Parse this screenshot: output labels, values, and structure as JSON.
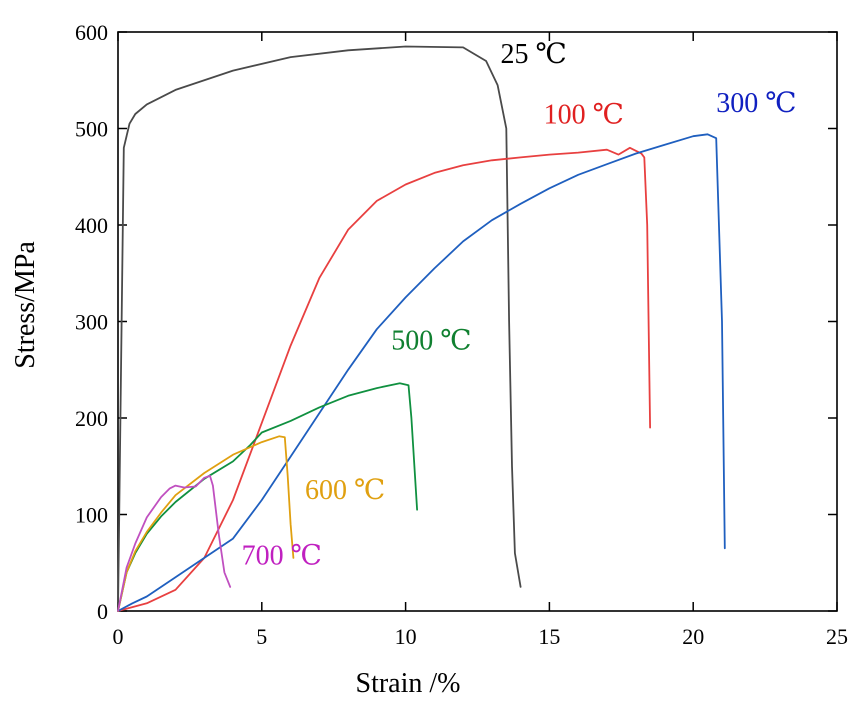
{
  "chart_data": {
    "type": "line",
    "xlabel": "Strain /%",
    "ylabel": "Stress/MPa",
    "xlim": [
      0,
      25
    ],
    "ylim": [
      0,
      600
    ],
    "xticks": [
      0,
      5,
      10,
      15,
      20,
      25
    ],
    "yticks": [
      0,
      100,
      200,
      300,
      400,
      500,
      600
    ],
    "grid": false,
    "legend": "inline labels near curves",
    "series": [
      {
        "name": "25 ℃",
        "color": "#4a4a4a",
        "x": [
          0.0,
          0.2,
          0.4,
          0.6,
          1.0,
          2.0,
          4.0,
          6.0,
          8.0,
          10.0,
          12.0,
          12.8,
          13.2,
          13.5,
          13.6,
          13.7,
          13.8,
          14.0
        ],
        "y": [
          0,
          480,
          505,
          515,
          525,
          540,
          560,
          574,
          581,
          585,
          584,
          570,
          545,
          500,
          300,
          150,
          60,
          25
        ]
      },
      {
        "name": "100 ℃",
        "color": "#e84040",
        "x": [
          0.0,
          0.5,
          1.0,
          2.0,
          3.0,
          4.0,
          5.0,
          6.0,
          7.0,
          8.0,
          9.0,
          10.0,
          11.0,
          12.0,
          13.0,
          14.0,
          15.0,
          16.0,
          17.0,
          17.4,
          17.8,
          18.2,
          18.3,
          18.4,
          18.5
        ],
        "y": [
          0,
          4,
          8,
          22,
          55,
          115,
          195,
          275,
          345,
          395,
          425,
          442,
          454,
          462,
          467,
          470,
          473,
          475,
          478,
          473,
          480,
          474,
          470,
          400,
          190
        ]
      },
      {
        "name": "300 ℃",
        "color": "#1f5fbf",
        "x": [
          0.0,
          0.5,
          1.0,
          2.0,
          3.0,
          4.0,
          5.0,
          6.0,
          7.0,
          8.0,
          9.0,
          10.0,
          11.0,
          12.0,
          13.0,
          14.0,
          15.0,
          16.0,
          17.0,
          18.0,
          19.0,
          20.0,
          20.5,
          20.8,
          21.0,
          21.1
        ],
        "y": [
          0,
          8,
          15,
          35,
          55,
          75,
          115,
          160,
          205,
          250,
          292,
          325,
          355,
          383,
          405,
          422,
          438,
          452,
          463,
          474,
          483,
          492,
          494,
          490,
          300,
          65
        ]
      },
      {
        "name": "500 ℃",
        "color": "#109040",
        "x": [
          0.0,
          0.3,
          0.6,
          1.0,
          1.5,
          2.0,
          3.0,
          4.0,
          4.6,
          5.0,
          6.0,
          7.0,
          8.0,
          9.0,
          9.8,
          10.1,
          10.2,
          10.4
        ],
        "y": [
          0,
          40,
          60,
          80,
          98,
          113,
          137,
          155,
          172,
          185,
          197,
          211,
          223,
          231,
          236,
          234,
          200,
          105
        ]
      },
      {
        "name": "600 ℃",
        "color": "#e0a010",
        "x": [
          0.0,
          0.3,
          0.6,
          1.0,
          1.5,
          2.0,
          3.0,
          4.0,
          5.0,
          5.6,
          5.8,
          5.9,
          6.0,
          6.1
        ],
        "y": [
          0,
          40,
          62,
          82,
          102,
          120,
          143,
          162,
          175,
          181,
          180,
          140,
          90,
          55
        ]
      },
      {
        "name": "700 ℃",
        "color": "#c050c0",
        "x": [
          0.0,
          0.3,
          0.6,
          1.0,
          1.5,
          1.8,
          2.0,
          2.3,
          2.7,
          3.0,
          3.2,
          3.3,
          3.5,
          3.7,
          3.9
        ],
        "y": [
          0,
          45,
          70,
          97,
          118,
          127,
          130,
          128,
          129,
          138,
          140,
          130,
          80,
          40,
          25
        ]
      }
    ],
    "annotations": [
      {
        "text": "25 ℃",
        "color": "#000000",
        "x": 13.3,
        "y": 568
      },
      {
        "text": "100 ℃",
        "color": "#e02020",
        "x": 14.8,
        "y": 505
      },
      {
        "text": "300 ℃",
        "color": "#1020c0",
        "x": 20.8,
        "y": 517
      },
      {
        "text": "500 ℃",
        "color": "#108030",
        "x": 9.5,
        "y": 271
      },
      {
        "text": "600 ℃",
        "color": "#e0a010",
        "x": 6.5,
        "y": 116
      },
      {
        "text": "700 ℃",
        "color": "#c020c0",
        "x": 4.3,
        "y": 48
      }
    ]
  }
}
